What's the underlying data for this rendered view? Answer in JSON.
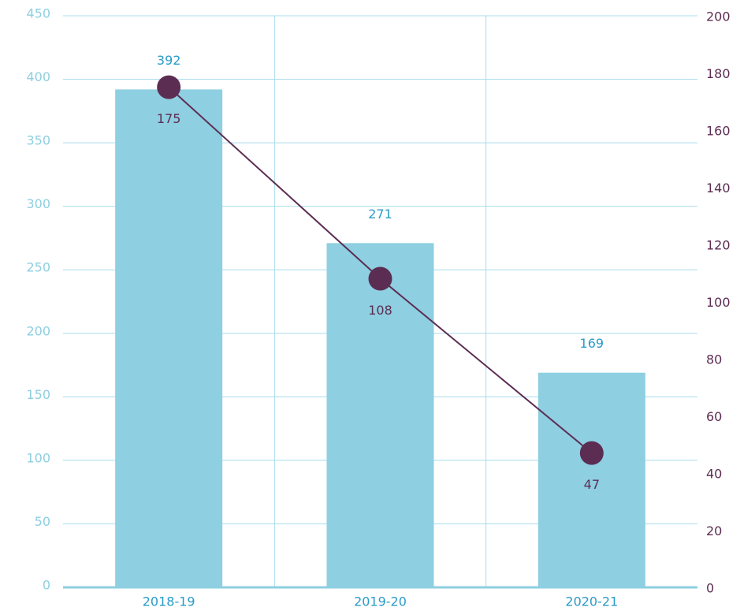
{
  "chart_data": {
    "type": "bar",
    "categories": [
      "2018-19",
      "2019-20",
      "2020-21"
    ],
    "series": [
      {
        "color": "#8ecfe1",
        "values": [
          392,
          271,
          169
        ]
      },
      {
        "color": "#5c2d52",
        "values": [
          175,
          108,
          47
        ],
        "axis": "y2",
        "type": "line"
      }
    ],
    "ylim": [
      0,
      450
    ],
    "yticks": [
      0,
      50,
      100,
      150,
      200,
      250,
      300,
      350,
      400,
      450
    ],
    "y2lim": [
      0,
      200
    ],
    "y2ticks": [
      0,
      20,
      40,
      60,
      80,
      100,
      120,
      140,
      160,
      180,
      200
    ],
    "grid": true
  }
}
